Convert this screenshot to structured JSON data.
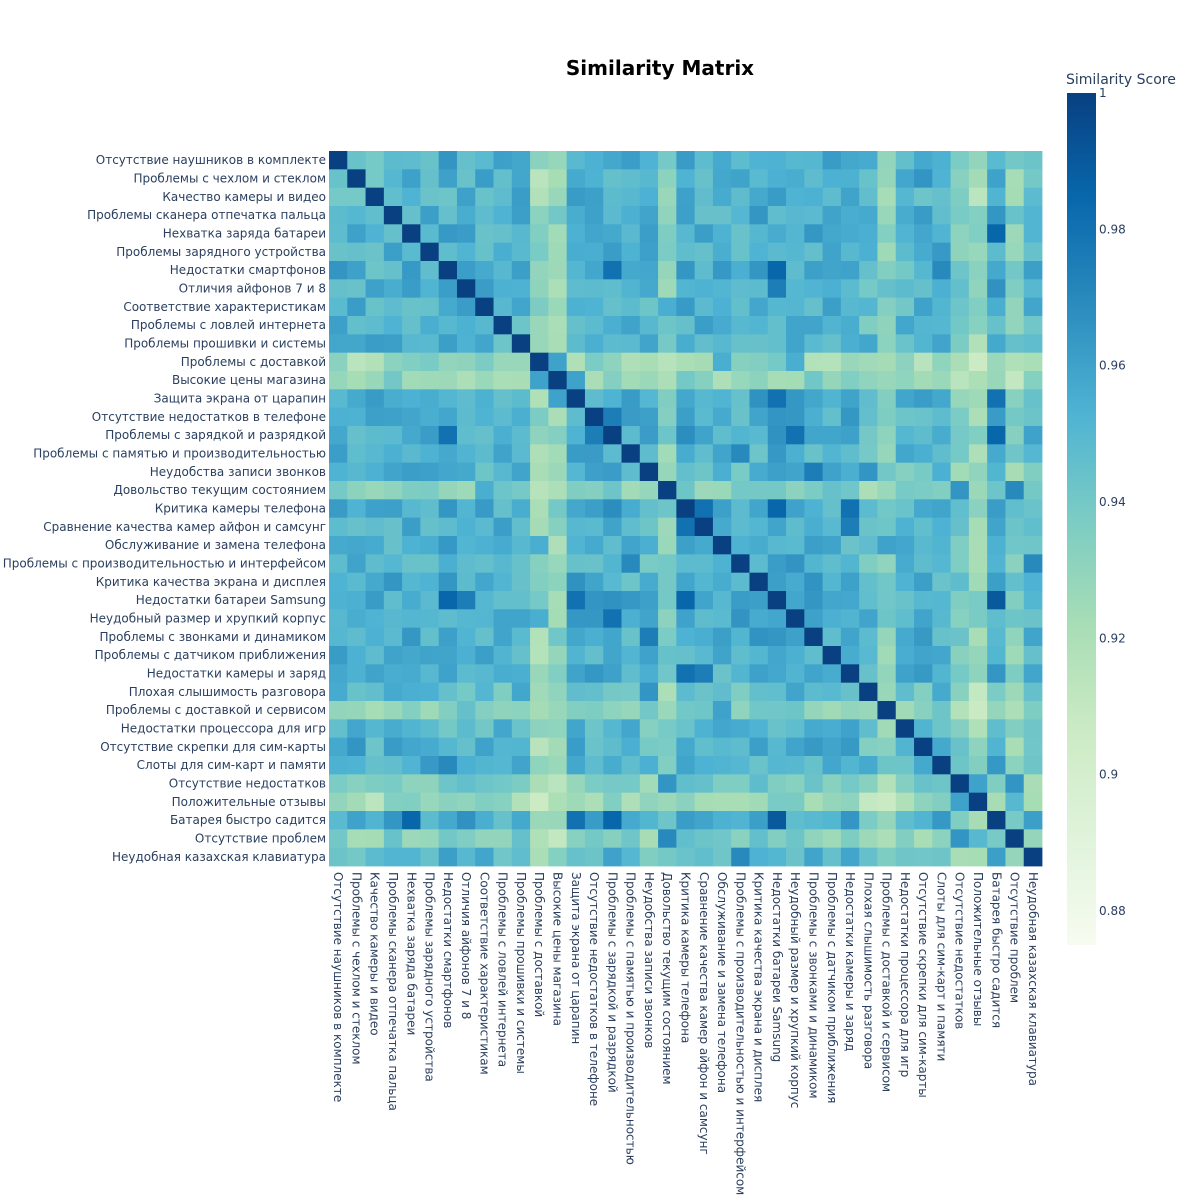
{
  "chart_data": {
    "type": "heatmap",
    "title": "Similarity Matrix",
    "colorbar": {
      "title": "Similarity Score",
      "range": [
        0.875,
        1
      ],
      "ticks": [
        "1",
        "0.98",
        "0.96",
        "0.94",
        "0.92",
        "0.9",
        "0.88"
      ],
      "tick_values": [
        1,
        0.98,
        0.96,
        0.94,
        0.92,
        0.9,
        0.88
      ],
      "colorscale": [
        [
          0.0,
          "#f7fcf0"
        ],
        [
          0.125,
          "#e0f3db"
        ],
        [
          0.25,
          "#ccebc5"
        ],
        [
          0.375,
          "#a8ddb5"
        ],
        [
          0.5,
          "#7bccc4"
        ],
        [
          0.625,
          "#4eb3d3"
        ],
        [
          0.75,
          "#2b8cbe"
        ],
        [
          0.875,
          "#0868ac"
        ],
        [
          1.0,
          "#084081"
        ]
      ]
    },
    "labels": [
      "Отсутствие наушников в комплекте",
      "Проблемы с чехлом и стеклом",
      "Качество камеры и видео",
      "Проблемы сканера отпечатка пальца",
      "Нехватка заряда батареи",
      "Проблемы зарядного устройства",
      "Недостатки смартфонов",
      "Отличия айфонов 7 и 8",
      "Соответствие характеристикам",
      "Проблемы с ловлей интернета",
      "Проблемы прошивки и системы",
      "Проблемы с доставкой",
      "Высокие цены магазина",
      "Защита экрана от царапин",
      "Отсутствие недостатков в телефоне",
      "Проблемы с зарядкой и разрядкой",
      "Проблемы с памятью и производительностью",
      "Неудобства записи звонков",
      "Довольство текущим состоянием",
      "Критика камеры телефона",
      "Сравнение качества камер айфон и самсунг",
      "Обслуживание и замена телефона",
      "Проблемы с производительностью и интерфейсом",
      "Критика качества экрана и дисплея",
      "Недостатки батареи Samsung",
      "Неудобный размер и хрупкий корпус",
      "Проблемы с звонками и динамиком",
      "Проблемы с датчиком приближения",
      "Недостатки камеры и заряд",
      "Плохая слышимость разговора",
      "Проблемы с доставкой и сервисом",
      "Недостатки процессора для игр",
      "Отсутствие скрепки для сим-карты",
      "Слоты для сим-карт и памяти",
      "Отсутствие недостатков",
      "Положительные отзывы",
      "Батарея быстро садится",
      "Отсутствие проблем",
      "Неудобная казахская клавиатура"
    ],
    "row_mean": [
      0.952,
      0.95,
      0.948,
      0.954,
      0.956,
      0.955,
      0.957,
      0.955,
      0.953,
      0.951,
      0.954,
      0.92,
      0.925,
      0.957,
      0.956,
      0.958,
      0.95,
      0.945,
      0.935,
      0.957,
      0.955,
      0.952,
      0.952,
      0.955,
      0.958,
      0.957,
      0.955,
      0.954,
      0.956,
      0.94,
      0.935,
      0.945,
      0.95,
      0.952,
      0.938,
      0.92,
      0.956,
      0.935,
      0.945
    ],
    "overrides": [
      [
        11,
        21,
        0.955
      ],
      [
        11,
        25,
        0.955
      ],
      [
        12,
        13,
        0.96
      ],
      [
        11,
        12,
        0.96
      ],
      [
        18,
        37,
        0.97
      ],
      [
        18,
        34,
        0.965
      ],
      [
        34,
        37,
        0.965
      ],
      [
        18,
        8,
        0.955
      ],
      [
        35,
        34,
        0.96
      ],
      [
        35,
        37,
        0.95
      ],
      [
        36,
        4,
        0.985
      ],
      [
        36,
        24,
        0.99
      ],
      [
        36,
        15,
        0.985
      ],
      [
        36,
        13,
        0.98
      ],
      [
        6,
        24,
        0.985
      ],
      [
        6,
        15,
        0.98
      ],
      [
        7,
        24,
        0.975
      ],
      [
        19,
        24,
        0.985
      ],
      [
        19,
        28,
        0.98
      ],
      [
        20,
        28,
        0.975
      ],
      [
        19,
        20,
        0.98
      ],
      [
        14,
        15,
        0.975
      ],
      [
        13,
        24,
        0.98
      ],
      [
        25,
        15,
        0.98
      ],
      [
        17,
        26,
        0.975
      ],
      [
        17,
        29,
        0.965
      ],
      [
        21,
        30,
        0.96
      ],
      [
        16,
        22,
        0.97
      ],
      [
        22,
        38,
        0.97
      ],
      [
        32,
        1,
        0.965
      ],
      [
        33,
        6,
        0.97
      ]
    ]
  }
}
